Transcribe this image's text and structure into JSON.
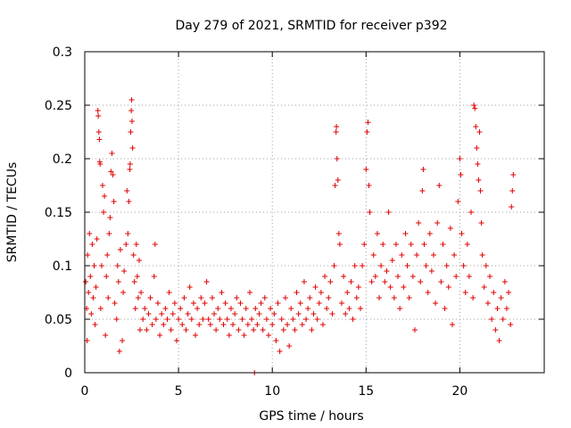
{
  "chart_data": {
    "type": "scatter",
    "title": "Day 279 of 2021, SRMTID for receiver p392",
    "xlabel": "GPS time / hours",
    "ylabel": "SRMTID / TECUs",
    "xlim": [
      0,
      24.5
    ],
    "ylim": [
      0,
      0.3
    ],
    "x_ticks": [
      0,
      5,
      10,
      15,
      20
    ],
    "x_tick_labels": [
      "0",
      "5",
      "10",
      "15",
      "20"
    ],
    "y_ticks": [
      0,
      0.05,
      0.1,
      0.15,
      0.2,
      0.25,
      0.3
    ],
    "y_tick_labels": [
      "0",
      "0.05",
      "0.1",
      "0.15",
      "0.2",
      "0.25",
      "0.3"
    ],
    "grid": true,
    "marker": "+",
    "color": "#e00000",
    "series": [
      {
        "name": "SRMTID",
        "points": [
          [
            0.05,
            0.085
          ],
          [
            0.1,
            0.06
          ],
          [
            0.12,
            0.03
          ],
          [
            0.15,
            0.11
          ],
          [
            0.2,
            0.075
          ],
          [
            0.25,
            0.13
          ],
          [
            0.3,
            0.09
          ],
          [
            0.35,
            0.055
          ],
          [
            0.4,
            0.12
          ],
          [
            0.45,
            0.07
          ],
          [
            0.5,
            0.1
          ],
          [
            0.55,
            0.045
          ],
          [
            0.6,
            0.08
          ],
          [
            0.65,
            0.125
          ],
          [
            0.7,
            0.245
          ],
          [
            0.72,
            0.24
          ],
          [
            0.75,
            0.225
          ],
          [
            0.78,
            0.218
          ],
          [
            0.8,
            0.197
          ],
          [
            0.82,
            0.195
          ],
          [
            0.85,
            0.06
          ],
          [
            0.9,
            0.1
          ],
          [
            0.95,
            0.175
          ],
          [
            1.0,
            0.15
          ],
          [
            1.05,
            0.165
          ],
          [
            1.1,
            0.035
          ],
          [
            1.15,
            0.09
          ],
          [
            1.2,
            0.11
          ],
          [
            1.25,
            0.07
          ],
          [
            1.3,
            0.13
          ],
          [
            1.35,
            0.145
          ],
          [
            1.4,
            0.188
          ],
          [
            1.45,
            0.205
          ],
          [
            1.5,
            0.185
          ],
          [
            1.55,
            0.16
          ],
          [
            1.6,
            0.065
          ],
          [
            1.7,
            0.05
          ],
          [
            1.75,
            0.1
          ],
          [
            1.8,
            0.085
          ],
          [
            1.85,
            0.02
          ],
          [
            1.9,
            0.115
          ],
          [
            2.0,
            0.03
          ],
          [
            2.05,
            0.075
          ],
          [
            2.1,
            0.095
          ],
          [
            2.2,
            0.12
          ],
          [
            2.25,
            0.17
          ],
          [
            2.3,
            0.13
          ],
          [
            2.35,
            0.16
          ],
          [
            2.4,
            0.19
          ],
          [
            2.42,
            0.195
          ],
          [
            2.45,
            0.225
          ],
          [
            2.48,
            0.245
          ],
          [
            2.5,
            0.255
          ],
          [
            2.52,
            0.235
          ],
          [
            2.55,
            0.21
          ],
          [
            2.6,
            0.11
          ],
          [
            2.65,
            0.085
          ],
          [
            2.7,
            0.06
          ],
          [
            2.75,
            0.12
          ],
          [
            2.8,
            0.09
          ],
          [
            2.85,
            0.07
          ],
          [
            2.9,
            0.105
          ],
          [
            2.95,
            0.04
          ],
          [
            3.0,
            0.075
          ],
          [
            3.1,
            0.05
          ],
          [
            3.2,
            0.06
          ],
          [
            3.3,
            0.04
          ],
          [
            3.4,
            0.055
          ],
          [
            3.5,
            0.07
          ],
          [
            3.6,
            0.045
          ],
          [
            3.7,
            0.09
          ],
          [
            3.75,
            0.12
          ],
          [
            3.8,
            0.05
          ],
          [
            3.9,
            0.065
          ],
          [
            4.0,
            0.035
          ],
          [
            4.1,
            0.055
          ],
          [
            4.2,
            0.045
          ],
          [
            4.3,
            0.06
          ],
          [
            4.4,
            0.05
          ],
          [
            4.5,
            0.075
          ],
          [
            4.6,
            0.04
          ],
          [
            4.7,
            0.055
          ],
          [
            4.8,
            0.065
          ],
          [
            4.9,
            0.03
          ],
          [
            5.0,
            0.05
          ],
          [
            5.1,
            0.06
          ],
          [
            5.2,
            0.045
          ],
          [
            5.3,
            0.07
          ],
          [
            5.4,
            0.04
          ],
          [
            5.5,
            0.055
          ],
          [
            5.6,
            0.08
          ],
          [
            5.7,
            0.05
          ],
          [
            5.8,
            0.065
          ],
          [
            5.9,
            0.035
          ],
          [
            6.0,
            0.06
          ],
          [
            6.1,
            0.045
          ],
          [
            6.2,
            0.07
          ],
          [
            6.3,
            0.05
          ],
          [
            6.4,
            0.065
          ],
          [
            6.5,
            0.085
          ],
          [
            6.6,
            0.05
          ],
          [
            6.7,
            0.045
          ],
          [
            6.8,
            0.07
          ],
          [
            6.9,
            0.055
          ],
          [
            7.0,
            0.04
          ],
          [
            7.1,
            0.06
          ],
          [
            7.2,
            0.05
          ],
          [
            7.3,
            0.075
          ],
          [
            7.4,
            0.045
          ],
          [
            7.5,
            0.065
          ],
          [
            7.6,
            0.05
          ],
          [
            7.7,
            0.035
          ],
          [
            7.8,
            0.06
          ],
          [
            7.9,
            0.045
          ],
          [
            8.0,
            0.055
          ],
          [
            8.1,
            0.07
          ],
          [
            8.2,
            0.04
          ],
          [
            8.3,
            0.065
          ],
          [
            8.4,
            0.05
          ],
          [
            8.5,
            0.035
          ],
          [
            8.6,
            0.06
          ],
          [
            8.7,
            0.045
          ],
          [
            8.8,
            0.075
          ],
          [
            8.9,
            0.05
          ],
          [
            9.0,
            0.04
          ],
          [
            9.05,
            0.0
          ],
          [
            9.1,
            0.06
          ],
          [
            9.2,
            0.045
          ],
          [
            9.3,
            0.055
          ],
          [
            9.4,
            0.065
          ],
          [
            9.5,
            0.04
          ],
          [
            9.6,
            0.07
          ],
          [
            9.7,
            0.05
          ],
          [
            9.8,
            0.035
          ],
          [
            9.9,
            0.06
          ],
          [
            10.0,
            0.045
          ],
          [
            10.1,
            0.055
          ],
          [
            10.2,
            0.03
          ],
          [
            10.3,
            0.065
          ],
          [
            10.4,
            0.02
          ],
          [
            10.5,
            0.05
          ],
          [
            10.6,
            0.04
          ],
          [
            10.7,
            0.07
          ],
          [
            10.8,
            0.045
          ],
          [
            10.9,
            0.025
          ],
          [
            11.0,
            0.06
          ],
          [
            11.1,
            0.05
          ],
          [
            11.2,
            0.04
          ],
          [
            11.3,
            0.075
          ],
          [
            11.4,
            0.055
          ],
          [
            11.5,
            0.065
          ],
          [
            11.6,
            0.045
          ],
          [
            11.7,
            0.085
          ],
          [
            11.8,
            0.05
          ],
          [
            11.9,
            0.06
          ],
          [
            12.0,
            0.07
          ],
          [
            12.1,
            0.04
          ],
          [
            12.2,
            0.055
          ],
          [
            12.3,
            0.08
          ],
          [
            12.4,
            0.05
          ],
          [
            12.5,
            0.065
          ],
          [
            12.6,
            0.075
          ],
          [
            12.7,
            0.045
          ],
          [
            12.8,
            0.09
          ],
          [
            12.9,
            0.06
          ],
          [
            13.0,
            0.07
          ],
          [
            13.1,
            0.085
          ],
          [
            13.2,
            0.055
          ],
          [
            13.3,
            0.1
          ],
          [
            13.35,
            0.175
          ],
          [
            13.4,
            0.225
          ],
          [
            13.42,
            0.23
          ],
          [
            13.45,
            0.2
          ],
          [
            13.5,
            0.18
          ],
          [
            13.55,
            0.13
          ],
          [
            13.6,
            0.12
          ],
          [
            13.7,
            0.065
          ],
          [
            13.8,
            0.09
          ],
          [
            13.9,
            0.055
          ],
          [
            14.0,
            0.075
          ],
          [
            14.1,
            0.06
          ],
          [
            14.2,
            0.085
          ],
          [
            14.3,
            0.05
          ],
          [
            14.4,
            0.1
          ],
          [
            14.5,
            0.07
          ],
          [
            14.6,
            0.08
          ],
          [
            14.7,
            0.06
          ],
          [
            14.8,
            0.1
          ],
          [
            14.9,
            0.12
          ],
          [
            15.0,
            0.19
          ],
          [
            15.05,
            0.225
          ],
          [
            15.1,
            0.234
          ],
          [
            15.15,
            0.175
          ],
          [
            15.2,
            0.15
          ],
          [
            15.3,
            0.085
          ],
          [
            15.4,
            0.11
          ],
          [
            15.5,
            0.09
          ],
          [
            15.6,
            0.13
          ],
          [
            15.7,
            0.07
          ],
          [
            15.8,
            0.1
          ],
          [
            15.9,
            0.12
          ],
          [
            16.0,
            0.085
          ],
          [
            16.1,
            0.095
          ],
          [
            16.2,
            0.15
          ],
          [
            16.3,
            0.08
          ],
          [
            16.4,
            0.105
          ],
          [
            16.5,
            0.07
          ],
          [
            16.6,
            0.12
          ],
          [
            16.7,
            0.09
          ],
          [
            16.8,
            0.06
          ],
          [
            16.9,
            0.11
          ],
          [
            17.0,
            0.08
          ],
          [
            17.1,
            0.13
          ],
          [
            17.2,
            0.1
          ],
          [
            17.3,
            0.07
          ],
          [
            17.4,
            0.12
          ],
          [
            17.5,
            0.09
          ],
          [
            17.6,
            0.04
          ],
          [
            17.7,
            0.11
          ],
          [
            17.8,
            0.14
          ],
          [
            17.9,
            0.085
          ],
          [
            18.0,
            0.17
          ],
          [
            18.05,
            0.19
          ],
          [
            18.1,
            0.12
          ],
          [
            18.2,
            0.1
          ],
          [
            18.3,
            0.075
          ],
          [
            18.4,
            0.13
          ],
          [
            18.5,
            0.095
          ],
          [
            18.6,
            0.11
          ],
          [
            18.7,
            0.065
          ],
          [
            18.8,
            0.14
          ],
          [
            18.9,
            0.175
          ],
          [
            19.0,
            0.085
          ],
          [
            19.1,
            0.12
          ],
          [
            19.2,
            0.06
          ],
          [
            19.3,
            0.1
          ],
          [
            19.4,
            0.08
          ],
          [
            19.5,
            0.135
          ],
          [
            19.6,
            0.045
          ],
          [
            19.7,
            0.11
          ],
          [
            19.8,
            0.09
          ],
          [
            19.9,
            0.16
          ],
          [
            20.0,
            0.2
          ],
          [
            20.05,
            0.185
          ],
          [
            20.1,
            0.13
          ],
          [
            20.2,
            0.1
          ],
          [
            20.3,
            0.075
          ],
          [
            20.4,
            0.12
          ],
          [
            20.5,
            0.09
          ],
          [
            20.6,
            0.15
          ],
          [
            20.7,
            0.07
          ],
          [
            20.75,
            0.25
          ],
          [
            20.8,
            0.247
          ],
          [
            20.85,
            0.23
          ],
          [
            20.9,
            0.21
          ],
          [
            20.95,
            0.195
          ],
          [
            21.0,
            0.18
          ],
          [
            21.05,
            0.225
          ],
          [
            21.1,
            0.17
          ],
          [
            21.15,
            0.14
          ],
          [
            21.2,
            0.11
          ],
          [
            21.3,
            0.08
          ],
          [
            21.4,
            0.1
          ],
          [
            21.5,
            0.065
          ],
          [
            21.6,
            0.09
          ],
          [
            21.7,
            0.05
          ],
          [
            21.8,
            0.075
          ],
          [
            21.9,
            0.04
          ],
          [
            22.0,
            0.06
          ],
          [
            22.1,
            0.03
          ],
          [
            22.2,
            0.07
          ],
          [
            22.3,
            0.05
          ],
          [
            22.4,
            0.085
          ],
          [
            22.5,
            0.06
          ],
          [
            22.6,
            0.075
          ],
          [
            22.7,
            0.045
          ],
          [
            22.75,
            0.155
          ],
          [
            22.8,
            0.17
          ],
          [
            22.85,
            0.185
          ]
        ]
      }
    ]
  }
}
